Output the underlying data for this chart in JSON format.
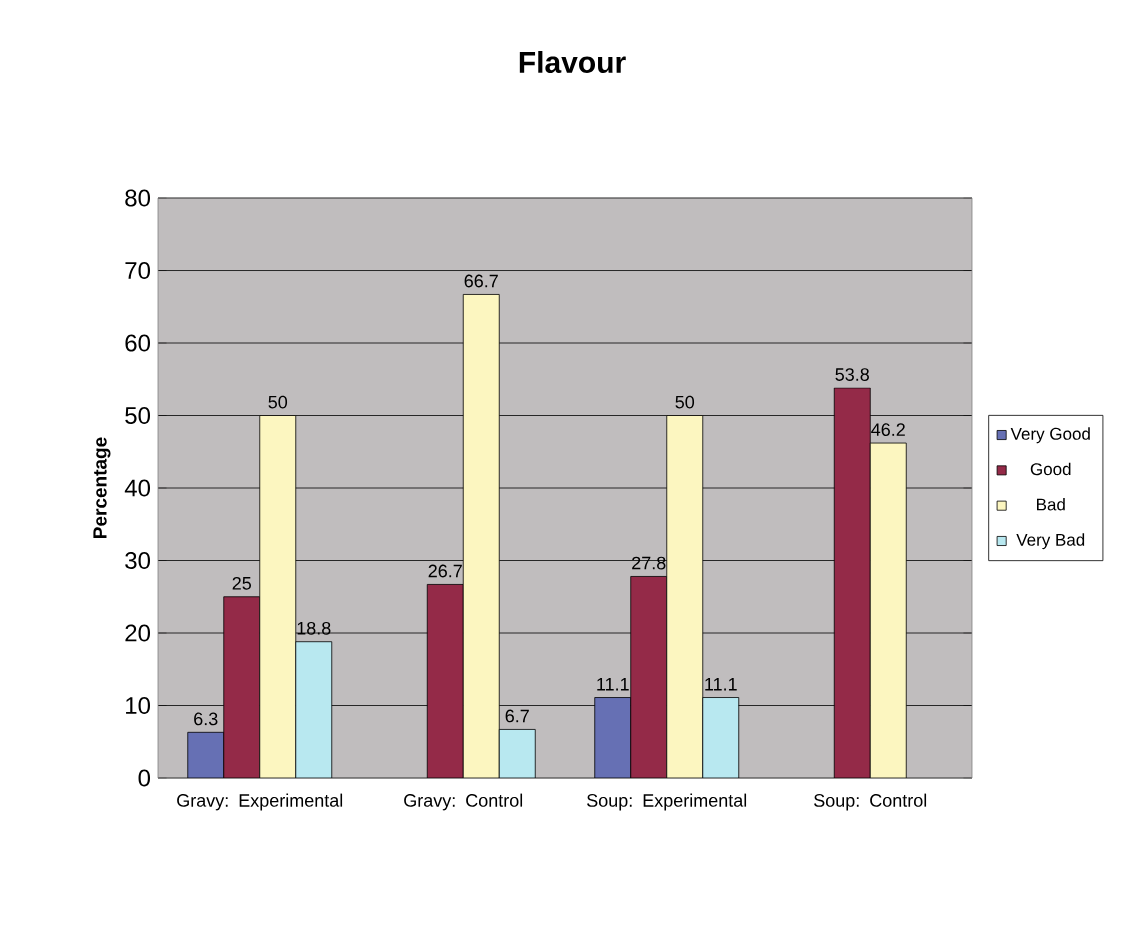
{
  "chart_data": {
    "type": "bar",
    "title": "Flavour",
    "ylabel": "Percentage",
    "categories": [
      "Gravy: Experimental",
      "Gravy: Control",
      "Soup: Experimental",
      "Soup: Control"
    ],
    "series": [
      {
        "name": "Very Good",
        "color": "#6670b4",
        "values": [
          6.3,
          null,
          11.1,
          null
        ]
      },
      {
        "name": "Good",
        "color": "#942a48",
        "values": [
          25,
          26.7,
          27.8,
          53.8
        ]
      },
      {
        "name": "Bad",
        "color": "#fcf6c0",
        "values": [
          50,
          66.7,
          50,
          46.2
        ]
      },
      {
        "name": "Very Bad",
        "color": "#b8e8f0",
        "values": [
          18.8,
          6.7,
          11.1,
          null
        ]
      }
    ],
    "ylim": [
      0,
      80
    ],
    "yticks": [
      0,
      10,
      20,
      30,
      40,
      50,
      60,
      70,
      80
    ],
    "grid": "y",
    "legend": "right",
    "data_labels": true
  }
}
